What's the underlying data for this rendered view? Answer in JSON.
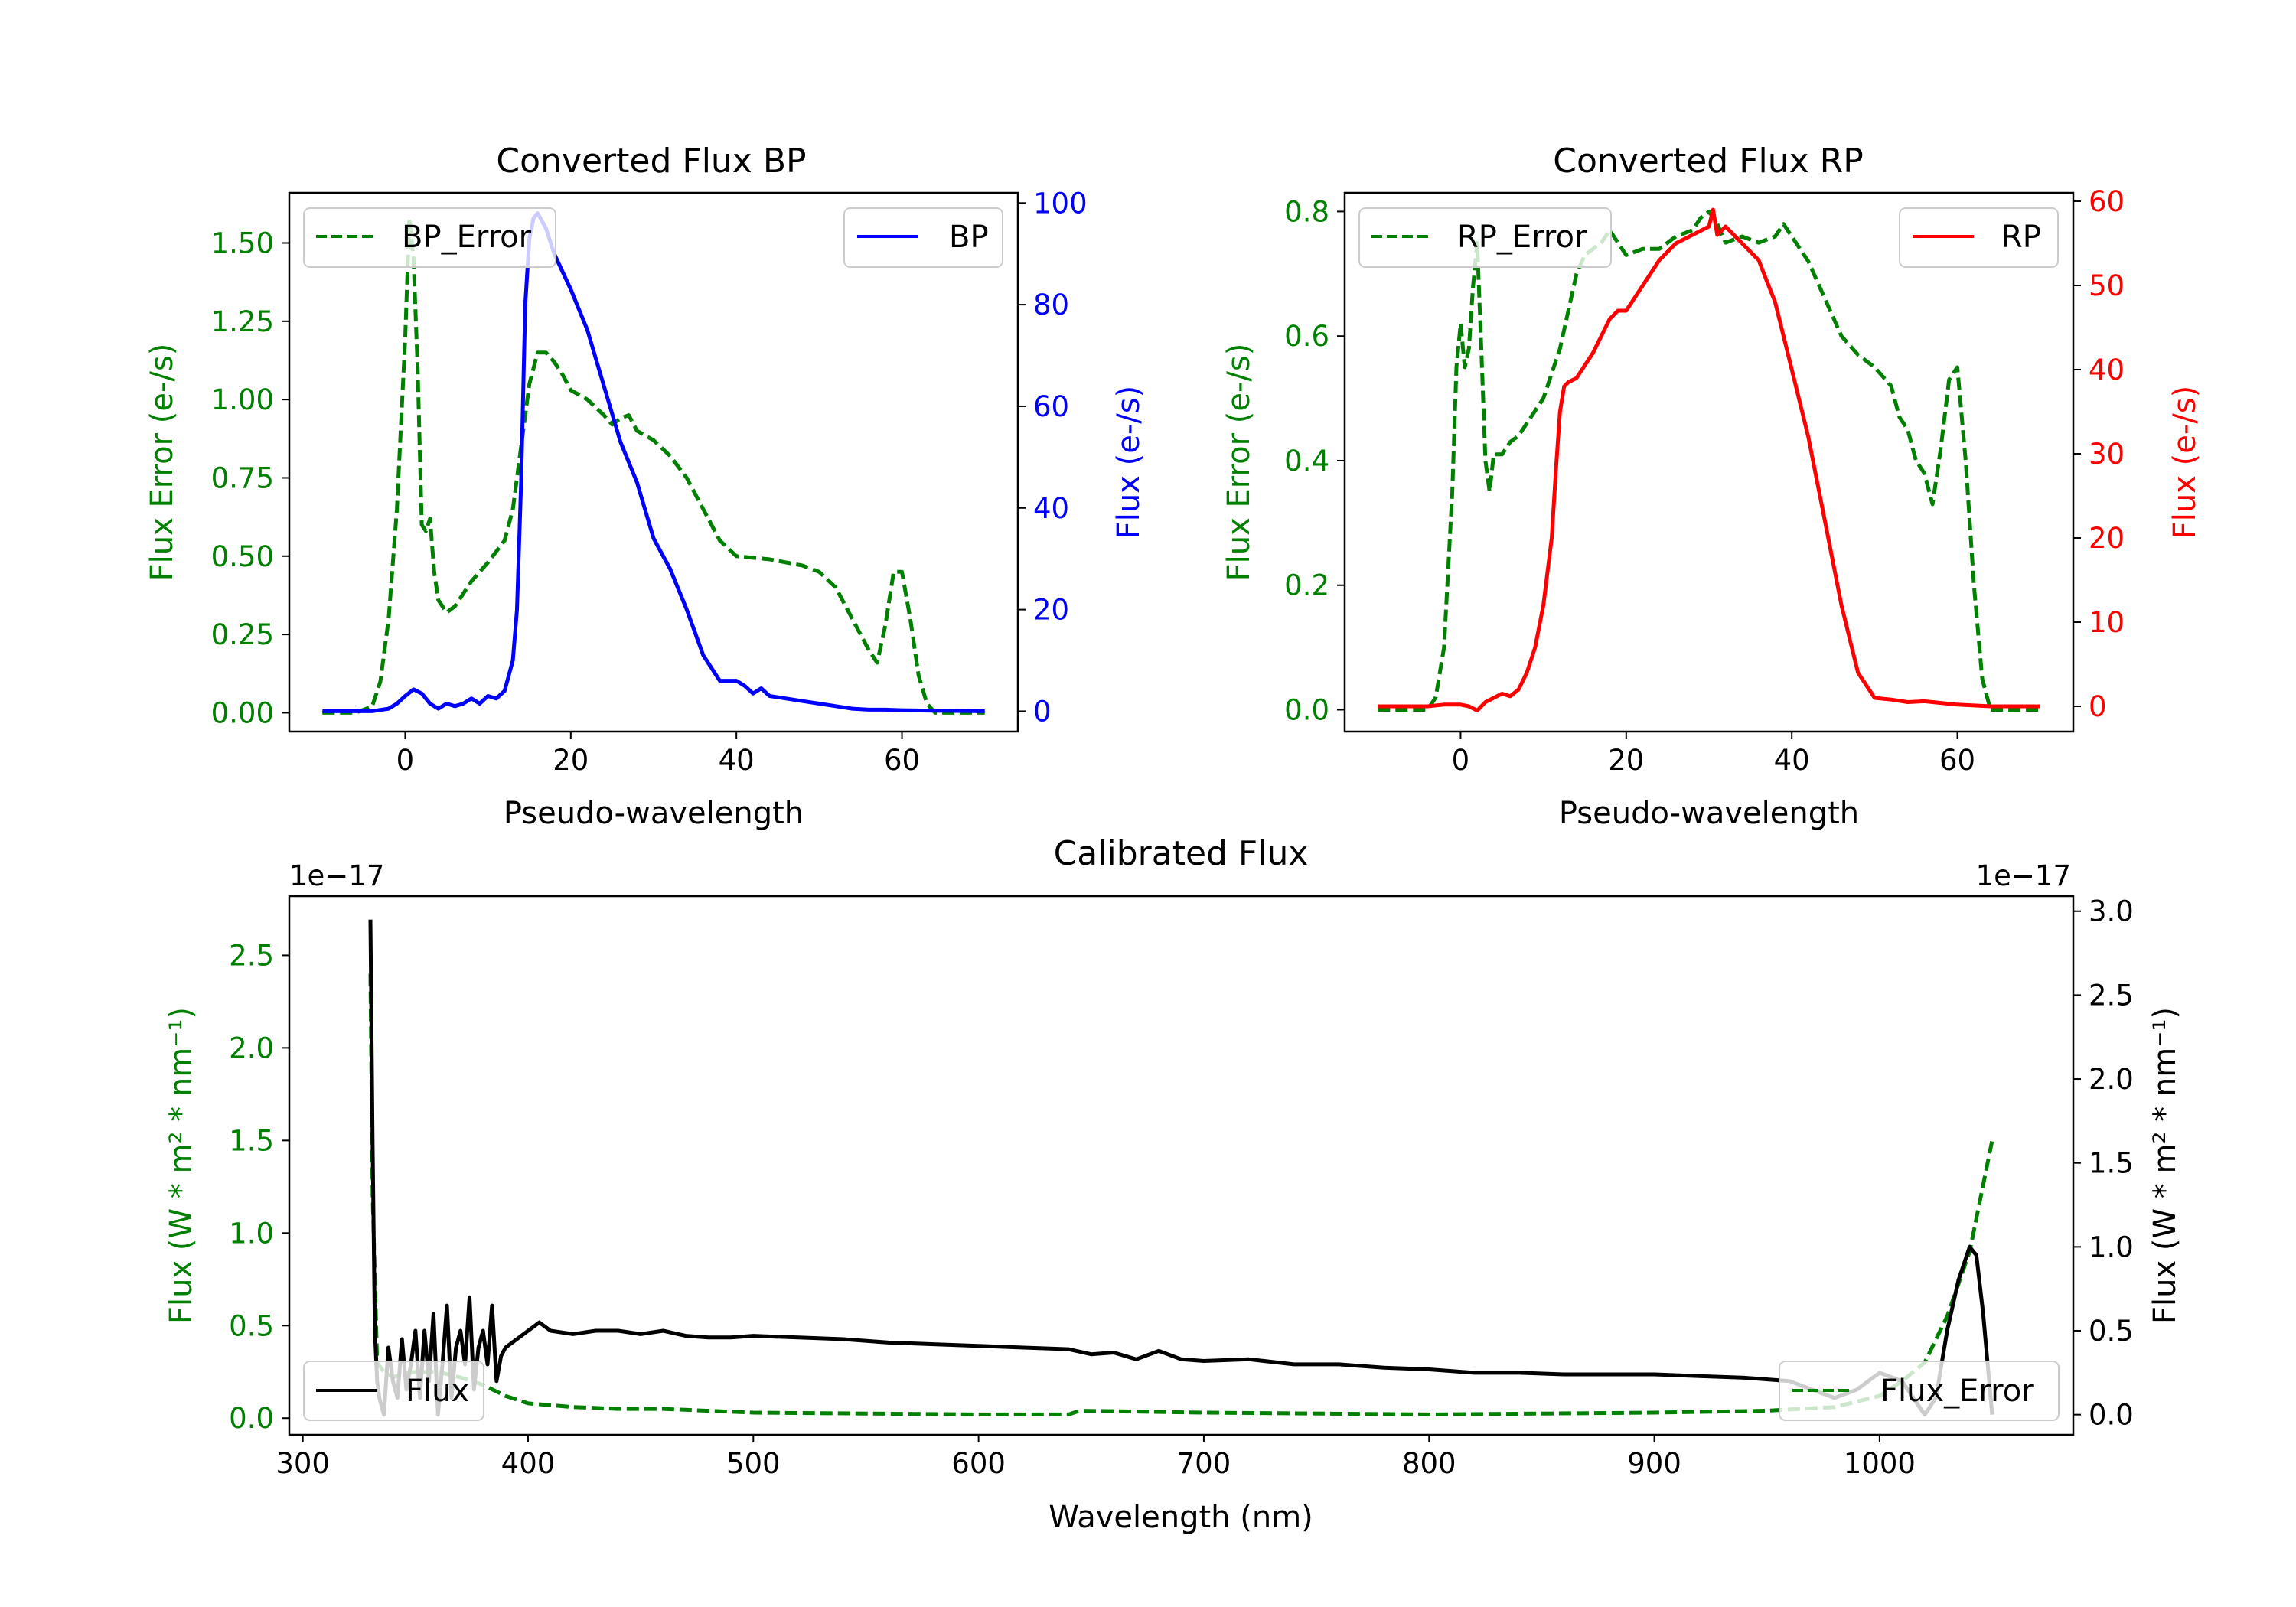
{
  "colors": {
    "green": "#008000",
    "blue": "#0000ff",
    "red": "#ff0000",
    "black": "#000000",
    "error_bg_green": "#c8e6c8"
  },
  "chart_data": [
    {
      "type": "line",
      "title": "Converted Flux BP",
      "xlabel": "Pseudo-wavelength",
      "ylabel_left": "Flux Error (e-/s)",
      "ylabel_right": "Flux (e-/s)",
      "xlim": [
        -14,
        74
      ],
      "ylim_left": [
        -0.06,
        1.66
      ],
      "ylim_right": [
        -4,
        102
      ],
      "xticks": [
        0,
        20,
        40,
        60
      ],
      "yticks_left": [
        "0.00",
        "0.25",
        "0.50",
        "0.75",
        "1.00",
        "1.25",
        "1.50"
      ],
      "yticks_right": [
        0,
        20,
        40,
        60,
        80,
        100
      ],
      "legend_left": {
        "label": "BP_Error",
        "position": "upper left"
      },
      "legend_right": {
        "label": "BP",
        "position": "upper right"
      },
      "series": [
        {
          "name": "BP_Error",
          "axis": "left",
          "color": "#008000",
          "style": "dashed",
          "x": [
            -10,
            -6,
            -4,
            -3,
            -2,
            -1,
            0,
            0.5,
            1,
            1.5,
            2,
            2.5,
            3,
            3.5,
            4,
            4.5,
            5,
            6,
            7,
            8,
            10,
            12,
            13,
            14,
            15,
            16,
            17,
            18,
            19,
            20,
            22,
            24,
            25,
            26,
            27,
            28,
            30,
            32,
            34,
            36,
            38,
            40,
            44,
            48,
            50,
            52,
            54,
            56,
            57,
            58,
            59,
            60,
            61,
            62,
            63,
            64,
            66,
            70
          ],
          "y": [
            0,
            0,
            0.02,
            0.1,
            0.3,
            0.65,
            1.2,
            1.58,
            1.45,
            1.1,
            0.6,
            0.58,
            0.62,
            0.45,
            0.36,
            0.34,
            0.32,
            0.34,
            0.38,
            0.42,
            0.48,
            0.55,
            0.65,
            0.85,
            1.05,
            1.15,
            1.15,
            1.12,
            1.08,
            1.03,
            1.0,
            0.95,
            0.92,
            0.94,
            0.95,
            0.9,
            0.87,
            0.82,
            0.75,
            0.65,
            0.55,
            0.5,
            0.49,
            0.47,
            0.45,
            0.4,
            0.3,
            0.2,
            0.16,
            0.28,
            0.45,
            0.45,
            0.3,
            0.12,
            0.03,
            0,
            0,
            0
          ]
        },
        {
          "name": "BP",
          "axis": "right",
          "color": "#0000ff",
          "style": "solid",
          "x": [
            -10,
            -4,
            -2,
            -1,
            0,
            1,
            2,
            3,
            4,
            5,
            6,
            7,
            8,
            9,
            10,
            11,
            12,
            13,
            13.5,
            14,
            14.5,
            15,
            15.5,
            16,
            17,
            18,
            20,
            22,
            24,
            26,
            28,
            30,
            32,
            34,
            36,
            38,
            40,
            41,
            42,
            43,
            44,
            46,
            48,
            50,
            52,
            54,
            56,
            58,
            60,
            64,
            70
          ],
          "y": [
            0,
            0,
            0.5,
            1.5,
            3,
            4.3,
            3.5,
            1.5,
            0.5,
            1.5,
            1.0,
            1.5,
            2.5,
            1.5,
            3.0,
            2.5,
            4.0,
            10,
            20,
            45,
            80,
            93,
            97,
            98,
            95,
            90,
            83,
            75,
            64,
            53,
            45,
            34,
            28,
            20,
            11,
            6,
            6,
            5,
            3.5,
            4.5,
            3.0,
            2.5,
            2.0,
            1.5,
            1.0,
            0.5,
            0.3,
            0.3,
            0.2,
            0.1,
            0
          ]
        }
      ]
    },
    {
      "type": "line",
      "title": "Converted Flux RP",
      "xlabel": "Pseudo-wavelength",
      "ylabel_left": "Flux Error (e-/s)",
      "ylabel_right": "Flux (e-/s)",
      "xlim": [
        -14,
        74
      ],
      "ylim_left": [
        -0.035,
        0.83
      ],
      "ylim_right": [
        -3,
        61
      ],
      "xticks": [
        0,
        20,
        40,
        60
      ],
      "yticks_left": [
        "0.0",
        "0.2",
        "0.4",
        "0.6",
        "0.8"
      ],
      "yticks_right": [
        0,
        10,
        20,
        30,
        40,
        50,
        60
      ],
      "legend_left": {
        "label": "RP_Error",
        "position": "upper left"
      },
      "legend_right": {
        "label": "RP",
        "position": "upper right"
      },
      "series": [
        {
          "name": "RP_Error",
          "axis": "left",
          "color": "#008000",
          "style": "dashed",
          "x": [
            -10,
            -6,
            -4,
            -3,
            -2,
            -1,
            -0.5,
            0,
            0.5,
            1,
            1.5,
            2,
            2.5,
            3,
            3.5,
            4,
            5,
            6,
            7,
            8,
            10,
            12,
            13,
            14,
            15,
            16,
            17,
            18,
            19,
            20,
            22,
            24,
            26,
            28,
            29,
            30,
            31,
            32,
            34,
            36,
            38,
            39,
            40,
            42,
            44,
            46,
            48,
            50,
            52,
            53,
            54,
            55,
            56,
            57,
            58,
            59,
            60,
            61,
            62,
            63,
            64,
            66,
            70
          ],
          "y": [
            0,
            0,
            0,
            0.02,
            0.1,
            0.35,
            0.55,
            0.62,
            0.55,
            0.58,
            0.68,
            0.75,
            0.58,
            0.4,
            0.35,
            0.41,
            0.41,
            0.43,
            0.44,
            0.46,
            0.5,
            0.58,
            0.64,
            0.7,
            0.73,
            0.74,
            0.75,
            0.77,
            0.75,
            0.73,
            0.74,
            0.74,
            0.76,
            0.77,
            0.79,
            0.8,
            0.78,
            0.75,
            0.76,
            0.75,
            0.76,
            0.78,
            0.76,
            0.72,
            0.66,
            0.6,
            0.57,
            0.55,
            0.52,
            0.47,
            0.45,
            0.4,
            0.38,
            0.33,
            0.42,
            0.53,
            0.55,
            0.4,
            0.2,
            0.05,
            0,
            0,
            0
          ]
        },
        {
          "name": "RP",
          "axis": "right",
          "color": "#ff0000",
          "style": "solid",
          "x": [
            -10,
            -4,
            -2,
            0,
            1,
            2,
            3,
            4,
            5,
            6,
            7,
            8,
            9,
            10,
            11,
            11.5,
            12,
            12.5,
            13,
            14,
            16,
            18,
            19,
            20,
            22,
            24,
            26,
            28,
            30,
            30.5,
            31,
            32,
            34,
            36,
            38,
            40,
            42,
            44,
            46,
            48,
            50,
            52,
            54,
            56,
            58,
            60,
            62,
            64,
            70
          ],
          "y": [
            0,
            0,
            0.2,
            0.2,
            0,
            -0.5,
            0.5,
            1.0,
            1.5,
            1.2,
            2.0,
            4.0,
            7.0,
            12,
            20,
            28,
            35,
            38,
            38.5,
            39,
            42,
            46,
            47,
            47,
            50,
            53,
            55,
            56,
            57,
            59,
            56,
            57,
            55,
            53,
            48,
            40,
            32,
            22,
            12,
            4,
            1,
            0.8,
            0.5,
            0.6,
            0.4,
            0.2,
            0.1,
            0,
            0
          ]
        }
      ]
    },
    {
      "type": "line",
      "title": "Calibrated Flux",
      "xlabel": "Wavelength (nm)",
      "ylabel_left": "Flux (W * m² * nm⁻¹)",
      "ylabel_right": "Flux (W * m² * nm⁻¹)",
      "offset_left": "1e−17",
      "offset_right": "1e−17",
      "xlim": [
        294,
        1086
      ],
      "ylim_left": [
        -0.09,
        2.82
      ],
      "ylim_right": [
        -0.12,
        3.09
      ],
      "xticks": [
        300,
        400,
        500,
        600,
        700,
        800,
        900,
        1000
      ],
      "yticks_left": [
        "0.0",
        "0.5",
        "1.0",
        "1.5",
        "2.0",
        "2.5"
      ],
      "yticks_right": [
        "0.0",
        "0.5",
        "1.0",
        "1.5",
        "2.0",
        "2.5",
        "3.0"
      ],
      "legend_left": {
        "label": "Flux",
        "position": "lower left"
      },
      "legend_right": {
        "label": "Flux_Error",
        "position": "lower right"
      },
      "series": [
        {
          "name": "Flux_Error",
          "axis": "left",
          "color": "#008000",
          "style": "dashed",
          "x": [
            330,
            331,
            333,
            336,
            340,
            345,
            350,
            360,
            370,
            380,
            390,
            400,
            420,
            440,
            460,
            500,
            550,
            600,
            640,
            645,
            700,
            800,
            900,
            950,
            980,
            1000,
            1010,
            1020,
            1030,
            1040,
            1050
          ],
          "y": [
            2.4,
            1.2,
            0.3,
            0.25,
            0.22,
            0.24,
            0.25,
            0.25,
            0.22,
            0.18,
            0.12,
            0.08,
            0.06,
            0.05,
            0.05,
            0.03,
            0.025,
            0.02,
            0.02,
            0.04,
            0.03,
            0.02,
            0.03,
            0.04,
            0.06,
            0.12,
            0.2,
            0.3,
            0.55,
            0.9,
            1.5
          ]
        },
        {
          "name": "Flux",
          "axis": "right",
          "color": "#000000",
          "style": "solid",
          "x": [
            330,
            331,
            332,
            333,
            334,
            336,
            338,
            340,
            342,
            344,
            346,
            348,
            350,
            352,
            354,
            356,
            358,
            360,
            362,
            364,
            366,
            368,
            370,
            372,
            374,
            376,
            378,
            380,
            382,
            384,
            386,
            388,
            390,
            395,
            400,
            405,
            410,
            420,
            430,
            440,
            450,
            460,
            470,
            480,
            490,
            500,
            520,
            540,
            560,
            580,
            600,
            620,
            640,
            650,
            660,
            670,
            680,
            690,
            700,
            720,
            740,
            760,
            780,
            800,
            820,
            840,
            860,
            880,
            900,
            920,
            940,
            960,
            970,
            980,
            990,
            1000,
            1010,
            1020,
            1025,
            1030,
            1035,
            1040,
            1043,
            1046,
            1050
          ],
          "y": [
            2.95,
            1.6,
            0.5,
            0.2,
            0.1,
            0.0,
            0.4,
            0.2,
            0.1,
            0.45,
            0.15,
            0.3,
            0.5,
            0.1,
            0.5,
            0.2,
            0.6,
            0.0,
            0.3,
            0.65,
            0.1,
            0.4,
            0.5,
            0.3,
            0.7,
            0.15,
            0.4,
            0.5,
            0.3,
            0.65,
            0.2,
            0.35,
            0.4,
            0.45,
            0.5,
            0.55,
            0.5,
            0.48,
            0.5,
            0.5,
            0.48,
            0.5,
            0.47,
            0.46,
            0.46,
            0.47,
            0.46,
            0.45,
            0.43,
            0.42,
            0.41,
            0.4,
            0.39,
            0.36,
            0.37,
            0.33,
            0.38,
            0.33,
            0.32,
            0.33,
            0.3,
            0.3,
            0.28,
            0.27,
            0.25,
            0.25,
            0.24,
            0.24,
            0.24,
            0.23,
            0.22,
            0.2,
            0.15,
            0.1,
            0.15,
            0.25,
            0.2,
            0.0,
            0.1,
            0.5,
            0.8,
            1.0,
            0.95,
            0.6,
            0.0
          ]
        }
      ]
    }
  ]
}
